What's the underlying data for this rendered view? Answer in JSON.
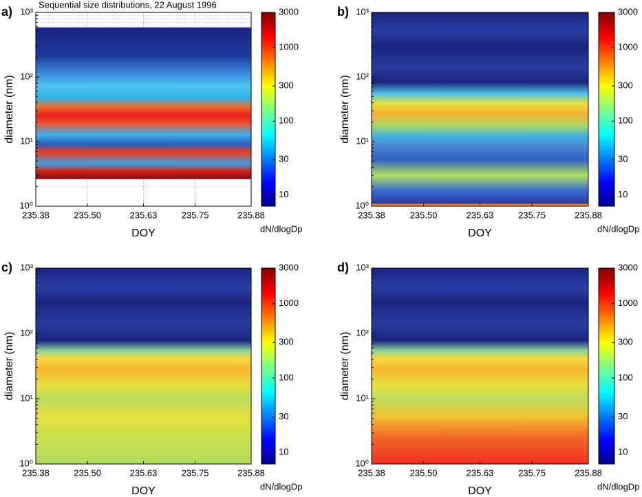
{
  "chart_data": [
    {
      "type": "contour",
      "panel_label": "a)",
      "title": "Sequential size distributions, 22 August 1996",
      "xlabel": "DOY",
      "ylabel": "diameter (nm)",
      "xlim": [
        235.38,
        235.88
      ],
      "xticks": [
        235.38,
        {
          "value": 235.5,
          "label": "235.50"
        },
        235.63,
        235.75,
        235.88
      ],
      "ylog": true,
      "ylim": [
        1,
        1000
      ],
      "yticks": [
        {
          "value": 1,
          "label": "10⁰"
        },
        {
          "value": 10,
          "label": "10¹"
        },
        {
          "value": 100,
          "label": "10²"
        },
        {
          "value": 1000,
          "label": "10³"
        }
      ],
      "grid": true,
      "colorbar": {
        "label": "dN/dlogDp",
        "log": true,
        "lim": [
          7,
          3000
        ],
        "ticks": [
          10,
          30,
          100,
          300,
          1000,
          3000
        ]
      }
    },
    {
      "type": "contour",
      "panel_label": "b)",
      "xlabel": "DOY",
      "ylabel": "diameter (nm)",
      "xlim": [
        235.38,
        235.88
      ],
      "xticks": [
        235.38,
        {
          "value": 235.5,
          "label": "235.50"
        },
        235.63,
        235.75,
        235.88
      ],
      "ylog": true,
      "ylim": [
        1,
        1000
      ],
      "yticks": [
        {
          "value": 1,
          "label": "10⁰"
        },
        {
          "value": 10,
          "label": "10¹"
        },
        {
          "value": 100,
          "label": "10²"
        },
        {
          "value": 1000,
          "label": "10³"
        }
      ],
      "grid": false,
      "colorbar": {
        "label": "dN/dlogDp",
        "log": true,
        "lim": [
          7,
          3000
        ],
        "ticks": [
          10,
          30,
          100,
          300,
          1000,
          3000
        ]
      }
    },
    {
      "type": "contour",
      "panel_label": "c)",
      "xlabel": "DOY",
      "ylabel": "diameter (nm)",
      "xlim": [
        235.38,
        235.88
      ],
      "xticks": [
        235.38,
        {
          "value": 235.5,
          "label": "235.50"
        },
        235.63,
        235.75,
        235.88
      ],
      "ylog": true,
      "ylim": [
        1,
        1000
      ],
      "yticks": [
        {
          "value": 1,
          "label": "10⁰"
        },
        {
          "value": 10,
          "label": "10¹"
        },
        {
          "value": 100,
          "label": "10²"
        },
        {
          "value": 1000,
          "label": "10³"
        }
      ],
      "grid": false,
      "colorbar": {
        "label": "dN/dlogDp",
        "log": true,
        "lim": [
          7,
          3000
        ],
        "ticks": [
          10,
          30,
          100,
          300,
          1000,
          3000
        ]
      }
    },
    {
      "type": "contour",
      "panel_label": "d)",
      "xlabel": "DOY",
      "ylabel": "diameter (nm)",
      "xlim": [
        235.38,
        235.88
      ],
      "xticks": [
        235.38,
        {
          "value": 235.5,
          "label": "235.50"
        },
        235.63,
        235.75,
        235.88
      ],
      "ylog": true,
      "ylim": [
        1,
        1000
      ],
      "yticks": [
        {
          "value": 1,
          "label": "10⁰"
        },
        {
          "value": 10,
          "label": "10¹"
        },
        {
          "value": 100,
          "label": "10²"
        },
        {
          "value": 1000,
          "label": "10³"
        }
      ],
      "grid": false,
      "colorbar": {
        "label": "dN/dlogDp",
        "log": true,
        "lim": [
          7,
          3000
        ],
        "ticks": [
          10,
          30,
          100,
          300,
          1000,
          3000
        ]
      }
    }
  ]
}
